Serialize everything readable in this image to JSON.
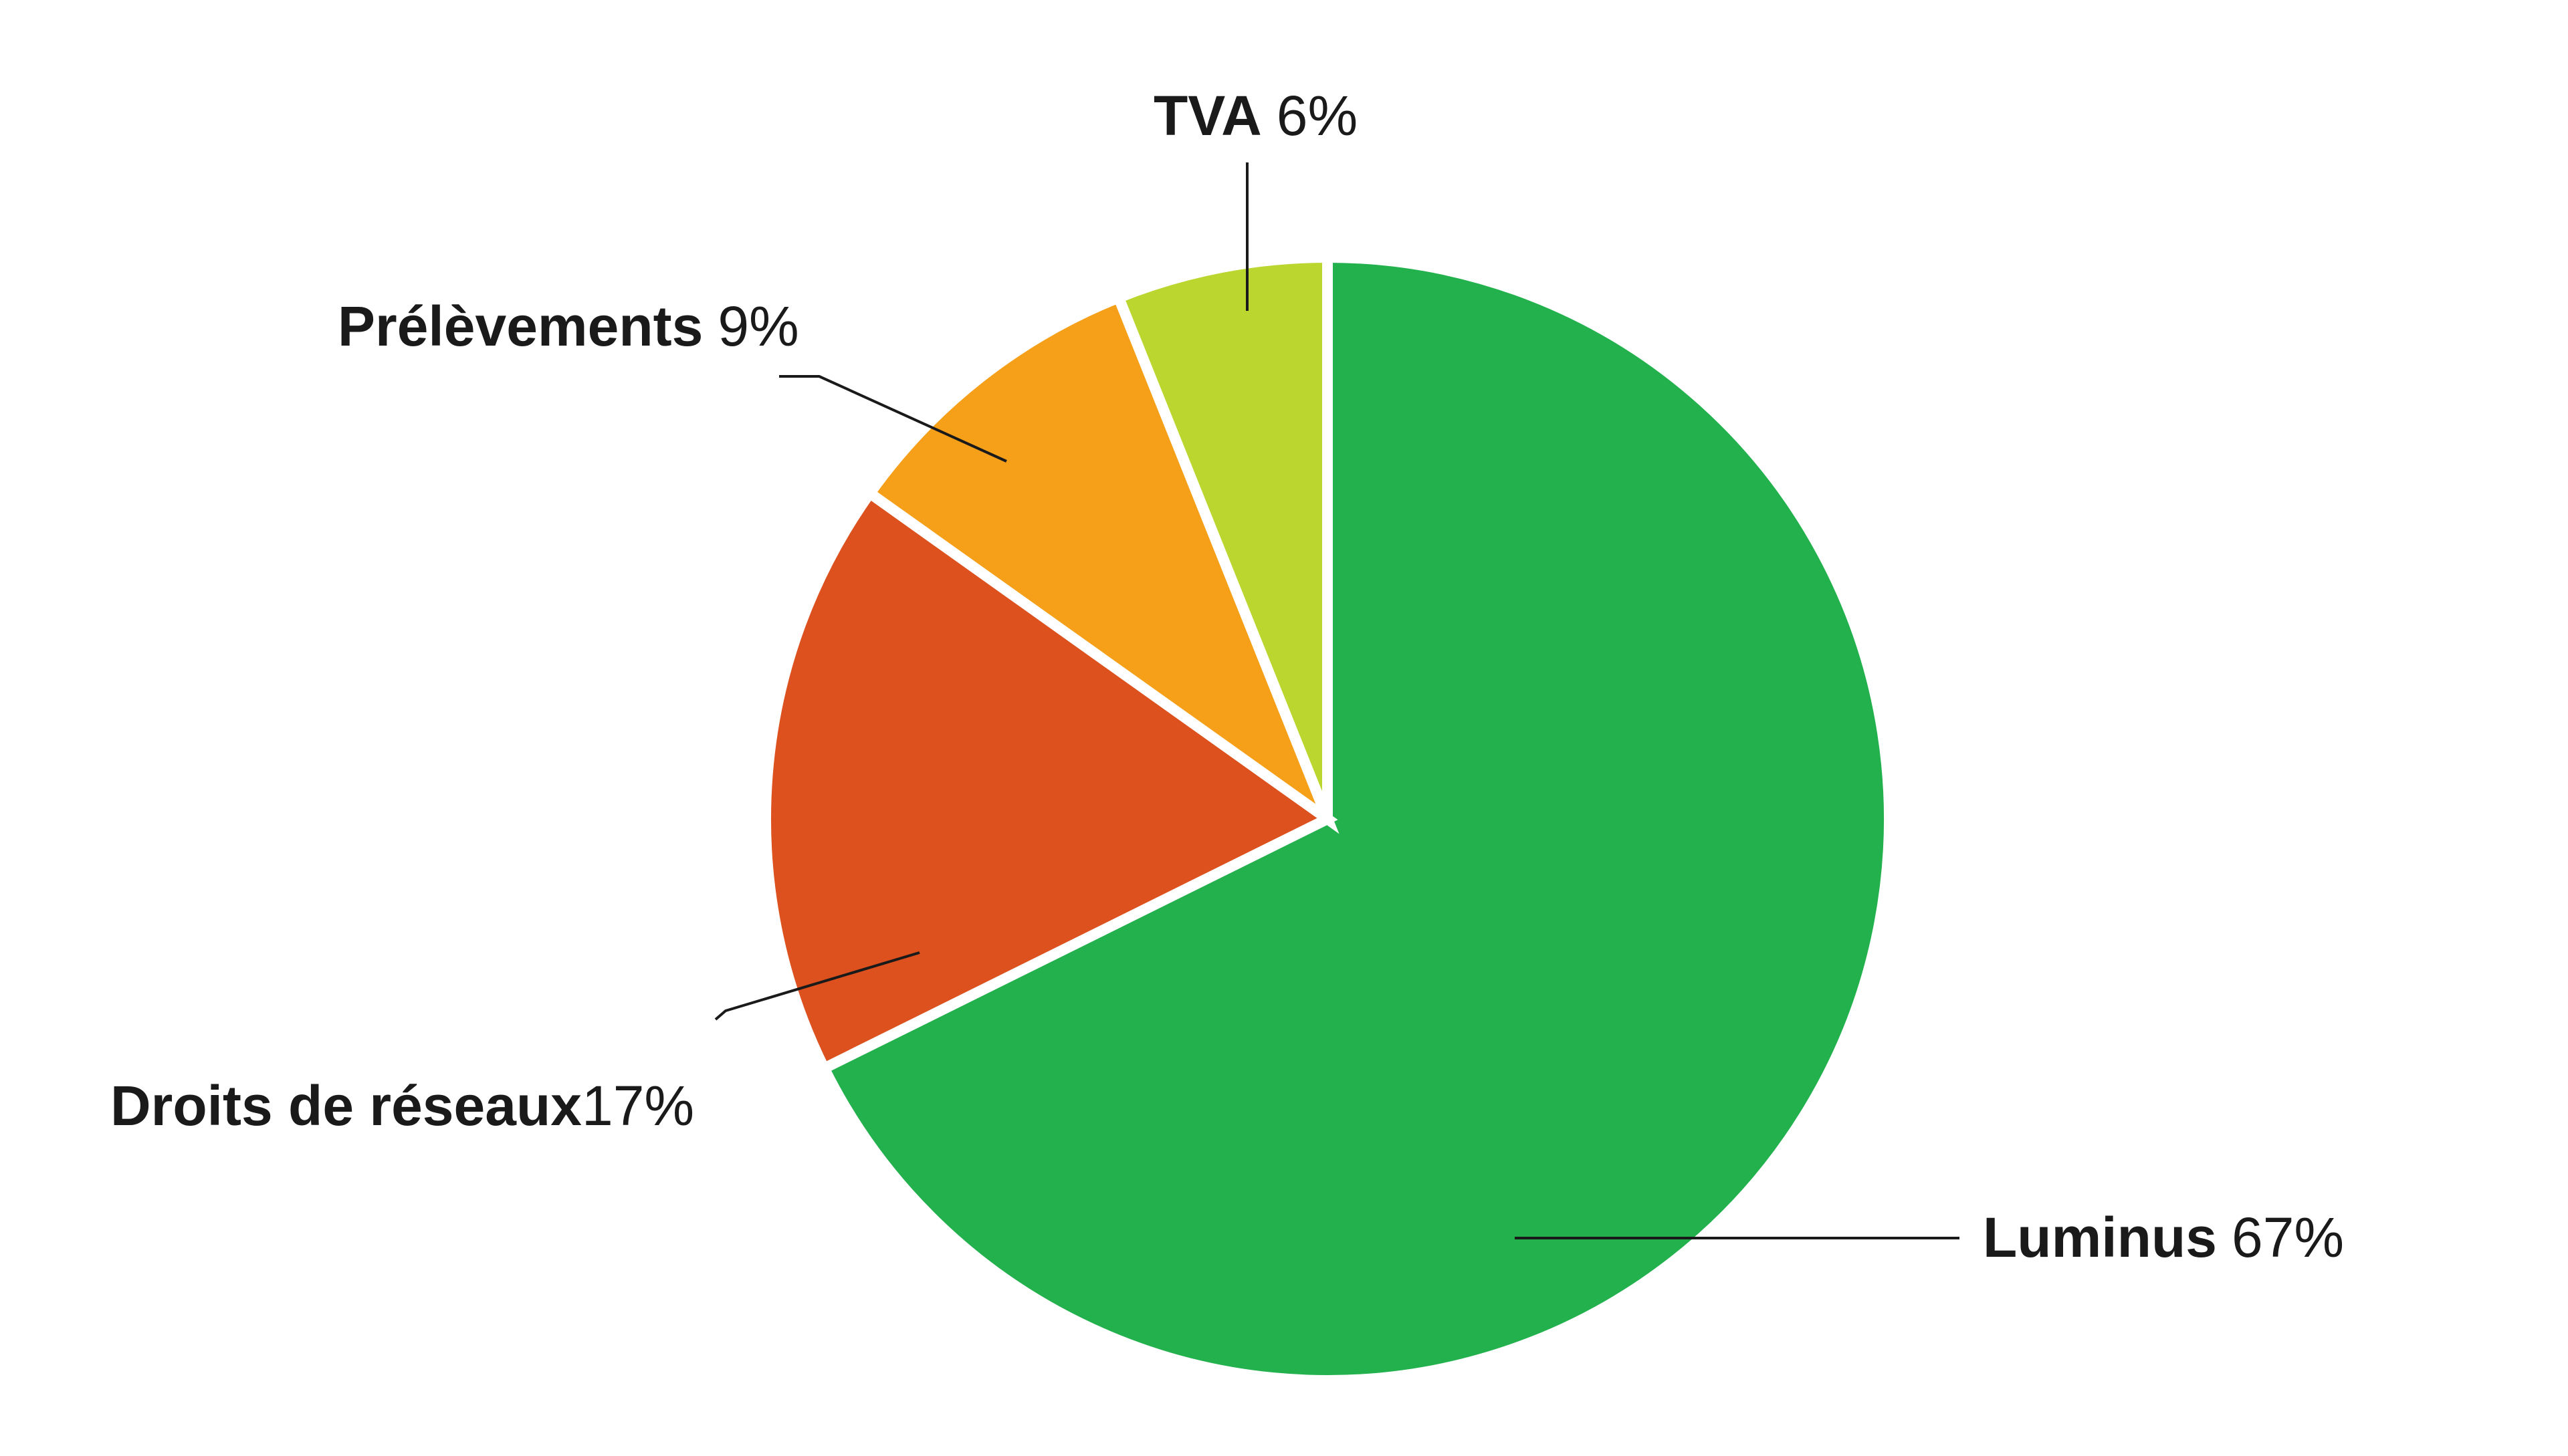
{
  "chart_data": {
    "type": "pie",
    "title": "",
    "start_angle_deg": 0,
    "direction": "clockwise",
    "slices": [
      {
        "name": "Luminus",
        "value_label": "67%",
        "value": 67,
        "color": "#22b14c"
      },
      {
        "name": "Droits de réseaux",
        "value_label": "17%",
        "value": 17,
        "color": "#dc511e"
      },
      {
        "name": "Prélèvements",
        "value_label": "9%",
        "value": 9,
        "color": "#f6a01a"
      },
      {
        "name": "TVA",
        "value_label": "6%",
        "value": 6,
        "color": "#bcd630"
      }
    ]
  }
}
